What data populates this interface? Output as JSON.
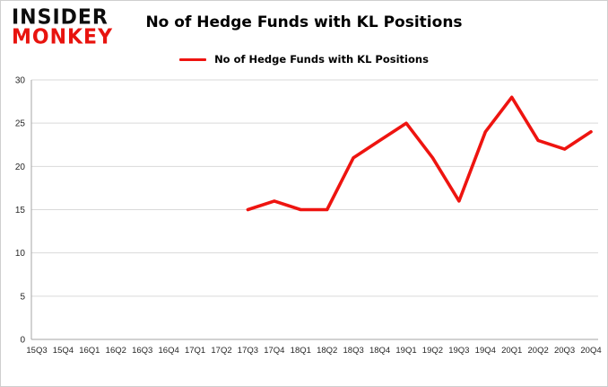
{
  "header": {
    "logo_line1": "INSIDER",
    "logo_line2": "MONKEY",
    "title": "No of Hedge Funds with KL Positions"
  },
  "legend": {
    "label": "No of Hedge Funds with KL Positions",
    "color": "#ee1410"
  },
  "chart_data": {
    "type": "line",
    "title": "No of Hedge Funds with KL Positions",
    "categories": [
      "15Q3",
      "15Q4",
      "16Q1",
      "16Q2",
      "16Q3",
      "16Q4",
      "17Q1",
      "17Q2",
      "17Q3",
      "17Q4",
      "18Q1",
      "18Q2",
      "18Q3",
      "18Q4",
      "19Q1",
      "19Q2",
      "19Q3",
      "19Q4",
      "20Q1",
      "20Q2",
      "20Q3",
      "20Q4"
    ],
    "values": [
      null,
      null,
      null,
      null,
      null,
      null,
      null,
      null,
      15,
      16,
      15,
      15,
      21,
      23,
      25,
      21,
      16,
      24,
      28,
      23,
      22,
      24
    ],
    "ylim": [
      0,
      30
    ],
    "ytick_step": 5,
    "grid": true,
    "line_color": "#ee1410",
    "grid_color": "#d9d9d9",
    "axis_color": "#a6a6a6",
    "tick_label_color": "#262626",
    "legend_position": "top"
  }
}
